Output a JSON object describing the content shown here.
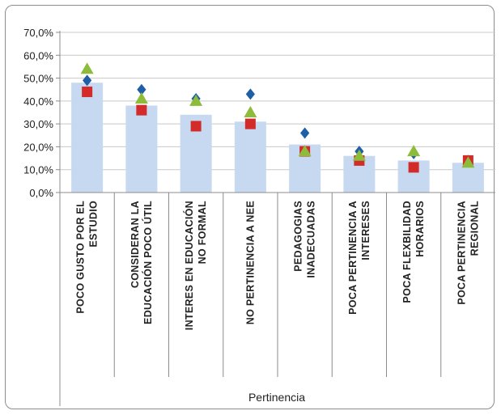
{
  "chart_data": {
    "type": "bar",
    "title": "",
    "xlabel": "Pertinencia",
    "ylabel": "",
    "ylim": [
      0,
      70
    ],
    "yticks": [
      "0,0%",
      "10,0%",
      "20,0%",
      "30,0%",
      "40,0%",
      "50,0%",
      "60,0%",
      "70,0%"
    ],
    "grid": true,
    "legend": "none",
    "categories": [
      [
        "POCO GUSTO POR EL",
        "ESTUDIO"
      ],
      [
        "CONSIDERAN LA",
        "EDUCACIÓN POCO ÚTIL"
      ],
      [
        "INTERES EN EDUCACIÓN",
        "NO FORMAL"
      ],
      [
        "NO PERTINENCIA A NEE"
      ],
      [
        "PEDAGOGIAS",
        "INADECUADAS"
      ],
      [
        "POCA PERTINENCIA A",
        "INTERESES"
      ],
      [
        "POCA FLEXBILIDAD",
        "HORARIOS"
      ],
      [
        "POCA PERTINENCIA",
        "REGIONAL"
      ]
    ],
    "bars": {
      "color": "#c6d9f0",
      "values": [
        48,
        38,
        34,
        31,
        21,
        16,
        14,
        13
      ]
    },
    "series": [
      {
        "marker": "diamond",
        "color": "#1f5fa8",
        "values": [
          49,
          45,
          41,
          43,
          26,
          18,
          17,
          14
        ]
      },
      {
        "marker": "square",
        "color": "#d32a2a",
        "values": [
          44,
          36,
          29,
          30,
          18,
          14,
          11,
          14
        ]
      },
      {
        "marker": "triangle",
        "color": "#8dbb3a",
        "values": [
          54,
          41,
          40,
          35,
          18,
          16,
          18,
          13
        ]
      }
    ]
  }
}
